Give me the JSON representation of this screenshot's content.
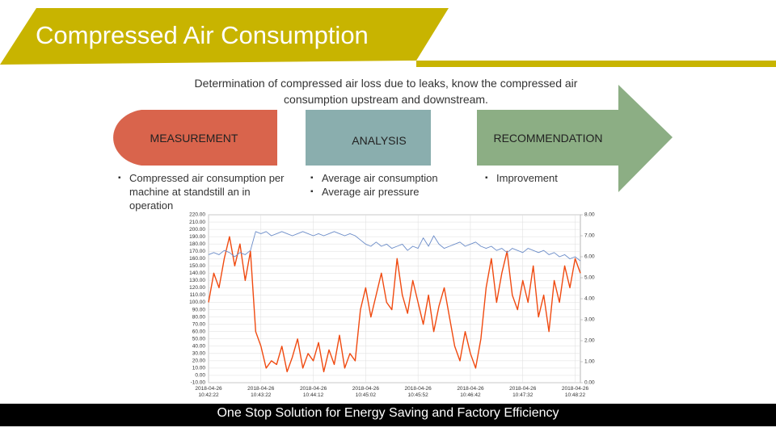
{
  "header": {
    "title": "Compressed Air Consumption"
  },
  "subtitle": "Determination of compressed air loss due to leaks, know the compressed air consumption upstream and downstream.",
  "steps": [
    {
      "label": "MEASUREMENT",
      "bullets": [
        "Compressed air consumption per machine at standstill an in operation"
      ]
    },
    {
      "label": "ANALYSIS",
      "bullets": [
        "Average air consumption",
        "Average air pressure"
      ]
    },
    {
      "label": "RECOMMENDATION",
      "bullets": [
        "Improvement"
      ]
    }
  ],
  "chart_data": {
    "type": "line",
    "xlim": [
      0,
      71
    ],
    "xticks": [
      {
        "value": 0,
        "label": "2018-04-26 10:42:22"
      },
      {
        "value": 10,
        "label": "2018-04-26 10:43:22"
      },
      {
        "value": 20,
        "label": "2018-04-26 10:44:12"
      },
      {
        "value": 30,
        "label": "2018-04-26 10:45:02"
      },
      {
        "value": 40,
        "label": "2018-04-26 10:45:52"
      },
      {
        "value": 50,
        "label": "2018-04-26 10:46:42"
      },
      {
        "value": 60,
        "label": "2018-04-26 10:47:32"
      },
      {
        "value": 70,
        "label": "2018-04-26 10:48:22"
      }
    ],
    "ylim": [
      -10,
      220
    ],
    "yticks": [
      {
        "value": 220,
        "label": "220.00"
      },
      {
        "value": 210,
        "label": "210.00"
      },
      {
        "value": 200,
        "label": "200.00"
      },
      {
        "value": 190,
        "label": "190.00"
      },
      {
        "value": 180,
        "label": "180.00"
      },
      {
        "value": 170,
        "label": "170.00"
      },
      {
        "value": 160,
        "label": "160.00"
      },
      {
        "value": 150,
        "label": "150.00"
      },
      {
        "value": 140,
        "label": "140.00"
      },
      {
        "value": 130,
        "label": "130.00"
      },
      {
        "value": 120,
        "label": "120.00"
      },
      {
        "value": 110,
        "label": "110.00"
      },
      {
        "value": 100,
        "label": "100.00"
      },
      {
        "value": 90,
        "label": "90.00"
      },
      {
        "value": 80,
        "label": "80.00"
      },
      {
        "value": 70,
        "label": "70.00"
      },
      {
        "value": 60,
        "label": "60.00"
      },
      {
        "value": 50,
        "label": "50.00"
      },
      {
        "value": 40,
        "label": "40.00"
      },
      {
        "value": 30,
        "label": "30.00"
      },
      {
        "value": 20,
        "label": "20.00"
      },
      {
        "value": 10,
        "label": "10.00"
      },
      {
        "value": 0,
        "label": "0.00"
      },
      {
        "value": -10,
        "label": "-10.00"
      }
    ],
    "y2lim": [
      0,
      8
    ],
    "y2ticks": [
      {
        "value": 8,
        "label": "8.00"
      },
      {
        "value": 7,
        "label": "7.00"
      },
      {
        "value": 6,
        "label": "6.00"
      },
      {
        "value": 5,
        "label": "5.00"
      },
      {
        "value": 4,
        "label": "4.00"
      },
      {
        "value": 3,
        "label": "3.00"
      },
      {
        "value": 2,
        "label": "2.00"
      },
      {
        "value": 1,
        "label": "1.00"
      },
      {
        "value": 0,
        "label": "0.00"
      }
    ],
    "grid": true,
    "series": [
      {
        "color": "#f04a10",
        "values": [
          100,
          140,
          120,
          160,
          190,
          150,
          180,
          130,
          170,
          60,
          40,
          10,
          20,
          15,
          40,
          5,
          25,
          50,
          10,
          30,
          20,
          45,
          5,
          35,
          15,
          55,
          10,
          30,
          20,
          90,
          120,
          80,
          110,
          140,
          100,
          90,
          160,
          110,
          85,
          130,
          100,
          70,
          110,
          60,
          95,
          120,
          80,
          40,
          20,
          60,
          30,
          10,
          50,
          120,
          160,
          100,
          140,
          170,
          110,
          90,
          130,
          100,
          150,
          80,
          110,
          60,
          130,
          100,
          150,
          120,
          160,
          140
        ]
      },
      {
        "color": "#6b8cc8",
        "axis": "y2",
        "values": [
          6.1,
          6.2,
          6.1,
          6.3,
          6.2,
          6.0,
          6.2,
          6.1,
          6.3,
          7.2,
          7.1,
          7.2,
          7.0,
          7.1,
          7.2,
          7.1,
          7.0,
          7.1,
          7.2,
          7.1,
          7.0,
          7.1,
          7.0,
          7.1,
          7.2,
          7.1,
          7.0,
          7.1,
          7.0,
          6.8,
          6.6,
          6.5,
          6.7,
          6.5,
          6.6,
          6.4,
          6.5,
          6.6,
          6.3,
          6.5,
          6.4,
          6.9,
          6.5,
          7.0,
          6.6,
          6.4,
          6.5,
          6.6,
          6.7,
          6.5,
          6.6,
          6.7,
          6.5,
          6.4,
          6.5,
          6.3,
          6.4,
          6.2,
          6.4,
          6.3,
          6.2,
          6.4,
          6.3,
          6.2,
          6.3,
          6.1,
          6.2,
          6.0,
          6.1,
          5.9,
          6.0,
          5.8
        ]
      }
    ]
  },
  "footer": "One Stop Solution for Energy Saving and Factory Efficiency"
}
